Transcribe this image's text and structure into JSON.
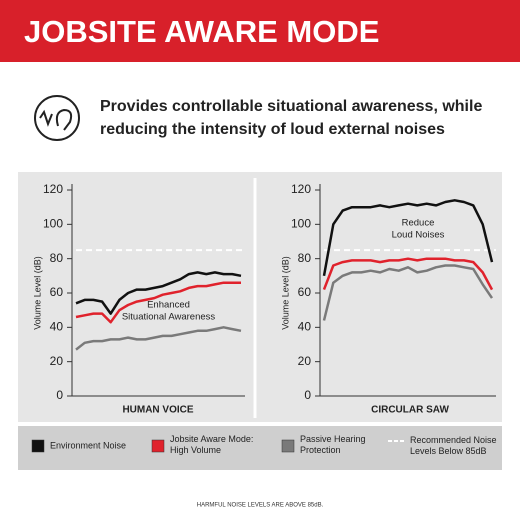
{
  "header": {
    "title": "JOBSITE AWARE MODE"
  },
  "subtitle": [
    "Provides controllable situational awareness, while",
    "reducing the intensity of loud external noises"
  ],
  "chart_data": [
    {
      "type": "line",
      "ylabel": "Volume Level (dB)",
      "xlabel": "HUMAN VOICE",
      "ylim": [
        0,
        120
      ],
      "yticks": [
        0,
        20,
        40,
        60,
        80,
        100,
        120
      ],
      "annotation": [
        "Enhanced",
        "Situational Awareness"
      ],
      "reference_line": {
        "value": 85,
        "name": "Recommended Noise Levels Below 85dB",
        "color": "#ffffff"
      },
      "series": [
        {
          "name": "Environment Noise",
          "color": "#111111",
          "values": [
            54,
            56,
            56,
            55,
            48,
            56,
            60,
            62,
            62,
            63,
            64,
            66,
            68,
            71,
            72,
            71,
            72,
            71,
            71,
            70
          ]
        },
        {
          "name": "Jobsite Aware Mode: High Volume",
          "color": "#e0222c",
          "values": [
            46,
            47,
            48,
            48,
            43,
            50,
            53,
            55,
            56,
            57,
            59,
            60,
            61,
            63,
            64,
            64,
            65,
            66,
            66,
            66
          ]
        },
        {
          "name": "Passive Hearing Protection",
          "color": "#7a7a7a",
          "values": [
            27,
            31,
            32,
            32,
            33,
            33,
            34,
            33,
            33,
            34,
            35,
            35,
            36,
            37,
            38,
            38,
            39,
            40,
            39,
            38
          ]
        }
      ]
    },
    {
      "type": "line",
      "ylabel": "Volume Level (dB)",
      "xlabel": "CIRCULAR SAW",
      "ylim": [
        0,
        120
      ],
      "yticks": [
        0,
        20,
        40,
        60,
        80,
        100,
        120
      ],
      "annotation": [
        "Reduce",
        "Loud Noises"
      ],
      "reference_line": {
        "value": 85,
        "color": "#ffffff"
      },
      "series": [
        {
          "color": "#111111",
          "values": [
            70,
            100,
            108,
            110,
            110,
            110,
            111,
            110,
            111,
            112,
            111,
            112,
            111,
            113,
            114,
            113,
            111,
            100,
            78
          ]
        },
        {
          "color": "#e0222c",
          "values": [
            62,
            76,
            78,
            79,
            79,
            79,
            78,
            79,
            79,
            80,
            79,
            80,
            80,
            80,
            79,
            79,
            78,
            72,
            62
          ]
        },
        {
          "color": "#7a7a7a",
          "values": [
            44,
            66,
            70,
            72,
            72,
            73,
            72,
            74,
            73,
            75,
            72,
            73,
            75,
            76,
            76,
            75,
            74,
            65,
            57
          ]
        }
      ]
    }
  ],
  "footer": "HARMFUL NOISE LEVELS ARE ABOVE 85dB."
}
